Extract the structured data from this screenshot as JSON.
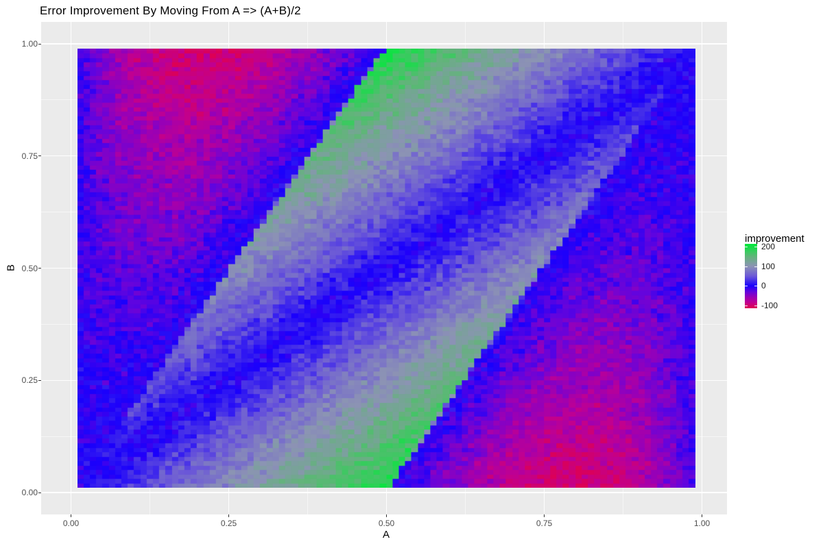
{
  "chart_data": {
    "type": "heatmap",
    "title": "Error Improvement By Moving From A => (A+B)/2",
    "xlabel": "A",
    "ylabel": "B",
    "x_ticks": {
      "values": [
        0,
        0.25,
        0.5,
        0.75,
        1
      ],
      "labels": [
        "0.00",
        "0.25",
        "0.50",
        "0.75",
        "1.00"
      ]
    },
    "y_ticks": {
      "values": [
        0,
        0.25,
        0.5,
        0.75,
        1
      ],
      "labels": [
        "0.00",
        "0.25",
        "0.50",
        "0.75",
        "1.00"
      ]
    },
    "x_minor": [
      0.125,
      0.375,
      0.625,
      0.875
    ],
    "y_minor": [
      0.125,
      0.375,
      0.625,
      0.875
    ],
    "axis_range": [
      0,
      1
    ],
    "grid": {
      "n": 98,
      "start": 0.015,
      "step": 0.01,
      "x_extent": [
        0.01,
        0.99
      ],
      "y_extent": [
        0.01,
        0.99
      ]
    },
    "legend": {
      "title": "improvement",
      "breaks": [
        200,
        100,
        0,
        -100
      ],
      "labels": [
        "200",
        "100",
        "0",
        "-100"
      ],
      "limits": [
        -115,
        215
      ],
      "position": "right"
    },
    "colormap": {
      "interpolation": "linear-rgb",
      "low": "#DD0055",
      "mid": "#1A00FC",
      "high": "#00E63C",
      "midpoint": 0,
      "stops": [
        [
          -115,
          "#DD0055"
        ],
        [
          -105,
          "#D60062"
        ],
        [
          -85,
          "#C00091"
        ],
        [
          -60,
          "#9D00B3"
        ],
        [
          -30,
          "#6204DE"
        ],
        [
          0,
          "#1A00FC"
        ],
        [
          50,
          "#6C59D7"
        ],
        [
          100,
          "#8C93B4"
        ],
        [
          150,
          "#62B47A"
        ],
        [
          200,
          "#12E045"
        ],
        [
          215,
          "#00E63C"
        ]
      ]
    },
    "value_model": {
      "description": "Simulated error improvement from moving prediction A to (A+B)/2 vs targets. Zero (blue) along diagonal A=B. Positive inside band 0 < 2A-B < 1, value ~ 400*|A-B| (blue -> grey ~100 -> bright green ~200 near the band edges at (0.5,1) and (0.5,0)). Negative outside band, value ~ -1100*A*(1-A)*dist(2A-B,[0,1]) (violet -> magenta -> crimson ~ -100 peaking near (0.2,0.9) and (0.8,0.1); near-zero blue along A~0 and A~1 edges). Sharp jagged Monte-Carlo boundaries along B=2A and B=2A-1 with occasional blue/grey tiles; speckle noise on every tile.",
      "inside_slope": 400,
      "outside_coeff": 1100,
      "boundaries": "2A-B = 0 and 2A-B = 1",
      "noise_amplitude": 26,
      "boundary_jitter": 0.008,
      "edge_soften": 0.009,
      "seed": 7,
      "clamp": [
        -115,
        215
      ]
    },
    "style": {
      "background": "#FFFFFF",
      "panel_bg": "#EBEBEB",
      "grid_major": "rgba(255,255,255,0.95)",
      "grid_minor": "rgba(255,255,255,0.55)",
      "tick_color": "#333333",
      "axis_text_color": "#4D4D4D",
      "title_color": "#000000"
    }
  }
}
